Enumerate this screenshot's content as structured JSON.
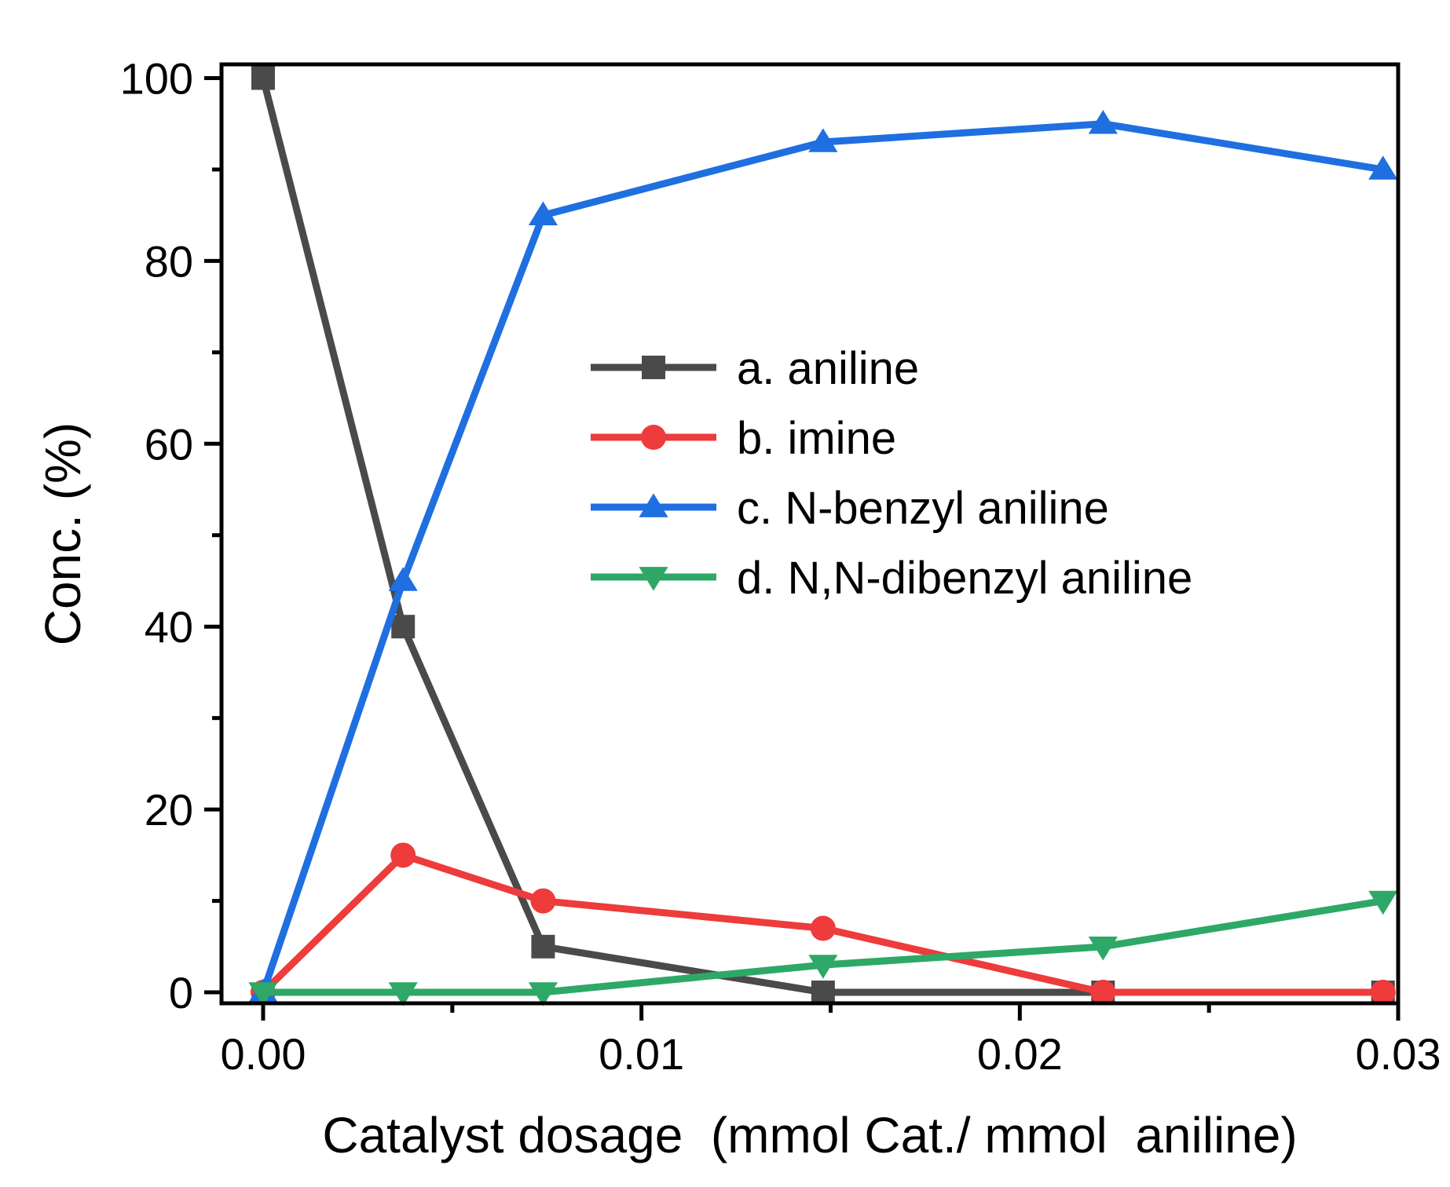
{
  "chart_data": {
    "type": "line",
    "title": "",
    "xlabel": "Catalyst dosage  (mmol Cat./ mmol  aniline)",
    "ylabel": "Conc. (%)",
    "xlim": [
      -0.0011,
      0.03
    ],
    "ylim": [
      -1.2,
      101.5
    ],
    "xticks": [
      0.0,
      0.01,
      0.02,
      0.03
    ],
    "xtick_labels": [
      "0.00",
      "0.01",
      "0.02",
      "0.03"
    ],
    "yticks": [
      0,
      20,
      40,
      60,
      80,
      100
    ],
    "ytick_labels": [
      "0",
      "20",
      "40",
      "60",
      "80",
      "100"
    ],
    "x": [
      0.0,
      0.0037,
      0.0074,
      0.0148,
      0.0222,
      0.0296
    ],
    "grid": false,
    "legend_position": "center-right",
    "series": [
      {
        "name": "a. aniline",
        "marker": "square",
        "color": "#4a4a4a",
        "values": [
          100,
          40,
          5,
          0,
          0,
          0
        ]
      },
      {
        "name": "b. imine",
        "marker": "circle",
        "color": "#ee3b3b",
        "values": [
          0,
          15,
          10,
          7,
          0,
          0
        ]
      },
      {
        "name": "c. N-benzyl aniline",
        "marker": "triangle-up",
        "color": "#1f6fe0",
        "values": [
          0,
          45,
          85,
          93,
          95,
          90
        ]
      },
      {
        "name": "d. N,N-dibenzyl aniline",
        "marker": "triangle-down",
        "color": "#2ea866",
        "values": [
          0,
          0,
          0,
          3,
          5,
          10
        ]
      }
    ]
  }
}
